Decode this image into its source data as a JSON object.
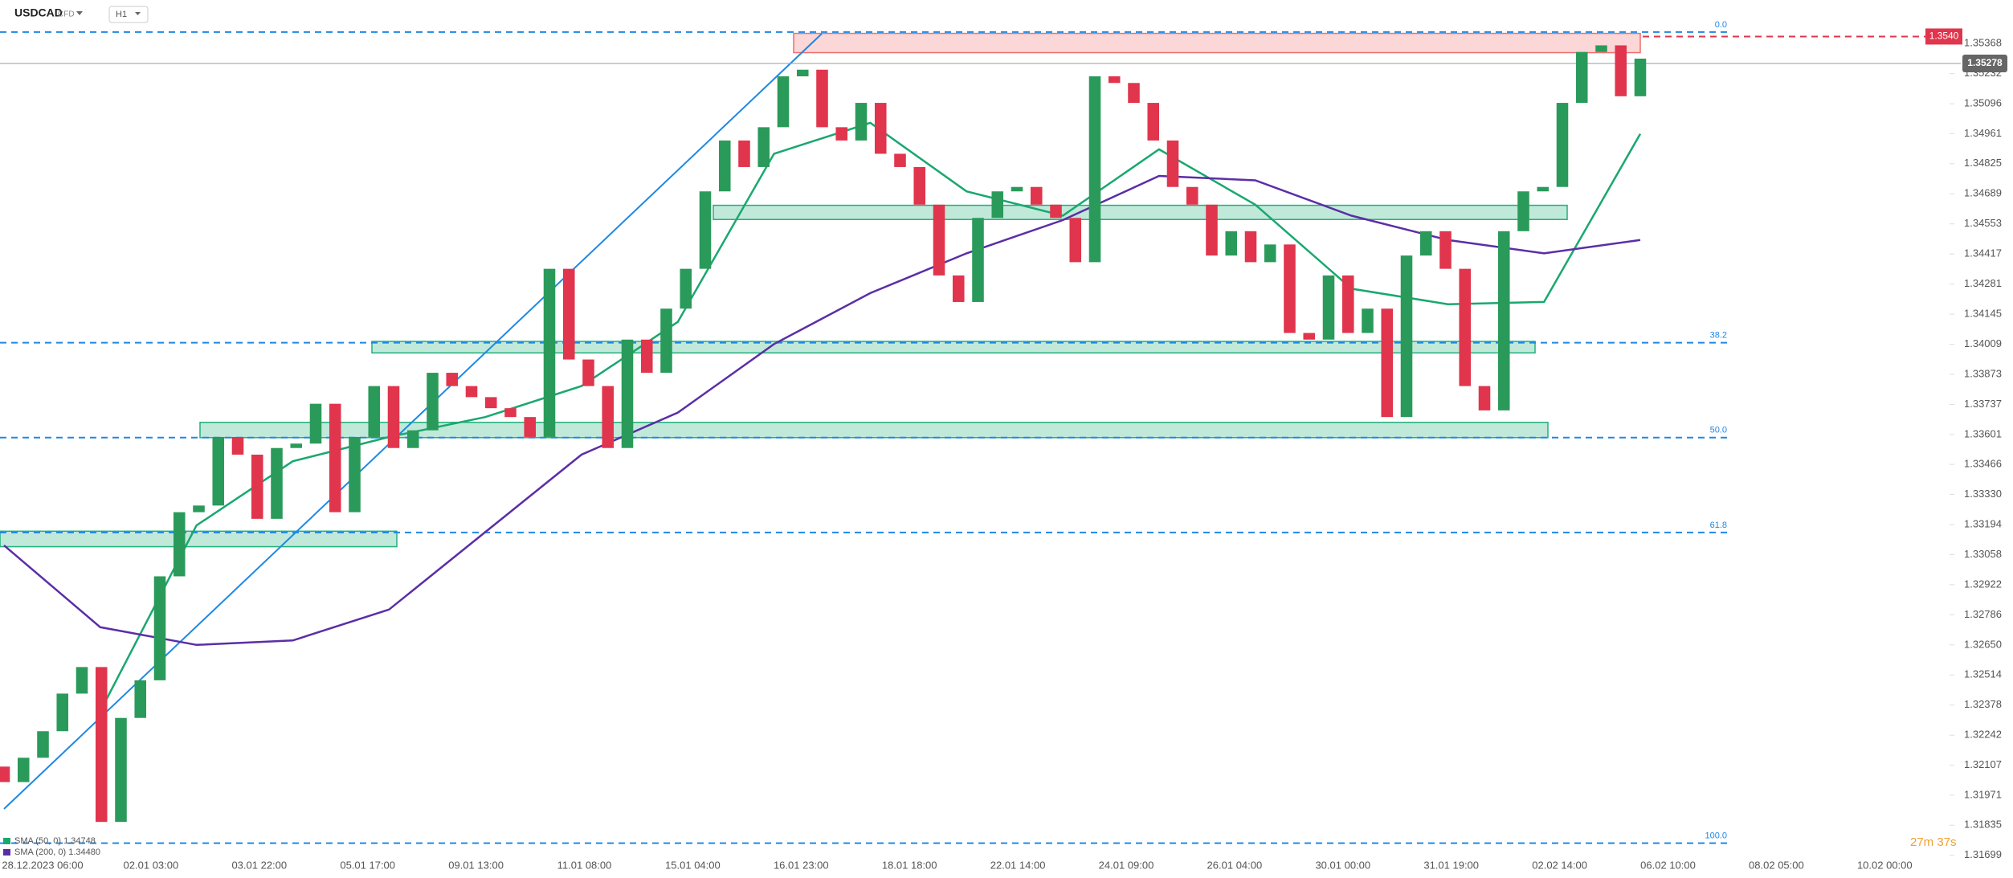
{
  "header": {
    "symbol": "USDCAD",
    "instrument": "CFD",
    "timeframe": "H1"
  },
  "chart_data": {
    "type": "candlestick",
    "categories": [
      "28.12.2023 06:00",
      "02.01 03:00",
      "03.01 22:00",
      "05.01 17:00",
      "09.01 13:00",
      "11.01 08:00",
      "15.01 04:00",
      "16.01 23:00",
      "18.01 18:00",
      "22.01 14:00",
      "24.01 09:00",
      "26.01 04:00",
      "30.01 00:00",
      "31.01 19:00",
      "02.02 14:00",
      "06.02 10:00",
      "08.02 05:00",
      "10.02 00:00"
    ],
    "open": [
      1.321,
      1.3203,
      1.3214,
      1.3226,
      1.3243,
      1.3255,
      1.3185,
      1.3232,
      1.3249,
      1.3296,
      1.3325,
      1.3328,
      1.3359,
      1.3351,
      1.3322,
      1.3354,
      1.3356,
      1.3374,
      1.3325,
      1.3359,
      1.3382,
      1.3354,
      1.3362,
      1.3388,
      1.3382,
      1.3377,
      1.3372,
      1.3368,
      1.3359,
      1.3435,
      1.3394,
      1.3382,
      1.3354,
      1.3403,
      1.3388,
      1.3417,
      1.3435,
      1.347,
      1.3493,
      1.3481,
      1.3499,
      1.3522,
      1.3525,
      1.3499,
      1.3493,
      1.351,
      1.3487,
      1.3481,
      1.3464,
      1.3432,
      1.342,
      1.3458,
      1.347,
      1.3472,
      1.3464,
      1.3458,
      1.3438,
      1.3522,
      1.3519,
      1.351,
      1.3493,
      1.3472,
      1.3464,
      1.3441,
      1.3452,
      1.3438,
      1.3446,
      1.3406,
      1.3403,
      1.3432,
      1.3406,
      1.3417,
      1.3368,
      1.3441,
      1.3452,
      1.3435,
      1.3382,
      1.3371,
      1.3452,
      1.347,
      1.3472,
      1.351,
      1.3533,
      1.3536,
      1.3513
    ],
    "close": [
      1.3203,
      1.3214,
      1.3226,
      1.3243,
      1.3255,
      1.3185,
      1.3232,
      1.3249,
      1.3296,
      1.3325,
      1.3328,
      1.3359,
      1.3351,
      1.3322,
      1.3354,
      1.3356,
      1.3374,
      1.3325,
      1.3359,
      1.3382,
      1.3354,
      1.3362,
      1.3388,
      1.3382,
      1.3377,
      1.3372,
      1.3368,
      1.3359,
      1.3435,
      1.3394,
      1.3382,
      1.3354,
      1.3403,
      1.3388,
      1.3417,
      1.3435,
      1.347,
      1.3493,
      1.3481,
      1.3499,
      1.3522,
      1.3525,
      1.3499,
      1.3493,
      1.351,
      1.3487,
      1.3481,
      1.3464,
      1.3432,
      1.342,
      1.3458,
      1.347,
      1.3472,
      1.3464,
      1.3458,
      1.3438,
      1.3522,
      1.3519,
      1.351,
      1.3493,
      1.3472,
      1.3464,
      1.3441,
      1.3452,
      1.3438,
      1.3446,
      1.3406,
      1.3403,
      1.3432,
      1.3406,
      1.3417,
      1.3368,
      1.3441,
      1.3452,
      1.3435,
      1.3382,
      1.3371,
      1.3452,
      1.347,
      1.3472,
      1.351,
      1.3533,
      1.3536,
      1.3513,
      1.353
    ],
    "up_color": "#2a9a5a",
    "down_color": "#e0354c",
    "ylim": [
      1.3168,
      1.35565
    ],
    "yticks": [
      1.35368,
      1.35232,
      1.35096,
      1.34961,
      1.34825,
      1.34689,
      1.34553,
      1.34417,
      1.34281,
      1.34145,
      1.34009,
      1.33873,
      1.33737,
      1.33601,
      1.33466,
      {
        "value": 1.3333,
        "label": "1.33330"
      },
      1.33194,
      1.33058,
      1.32922,
      1.32786,
      {
        "value": 1.3265,
        "label": "1.32650"
      },
      1.32514,
      1.32378,
      1.32242,
      1.32107,
      1.31971,
      1.31835,
      1.31699
    ],
    "series": [
      {
        "name": "SMA (50, 0) 1.34748",
        "color": "#19a86f",
        "values": [
          null,
          1.3235,
          1.3319,
          1.3348,
          1.3359,
          1.3368,
          1.3382,
          1.3411,
          1.3487,
          1.3501,
          1.347,
          1.3459,
          1.3489,
          1.3464,
          1.3426,
          1.3419,
          1.342,
          1.3496
        ]
      },
      {
        "name": "SMA (200, 0) 1.34480",
        "color": "#5b2ea6",
        "values": [
          1.331,
          1.3273,
          1.3265,
          1.3267,
          1.3281,
          1.3316,
          1.3351,
          1.337,
          1.3401,
          1.3424,
          1.3442,
          1.3457,
          1.3477,
          1.3475,
          1.3459,
          1.3448,
          1.3442,
          1.3448
        ]
      }
    ],
    "fib_levels": [
      {
        "value": 1.3542,
        "label": "0.0"
      },
      {
        "value": 1.34016,
        "label": "38.2"
      },
      {
        "value": 1.33587,
        "label": "50.0"
      },
      {
        "value": 1.33158,
        "label": "61.8"
      },
      {
        "value": 1.31754,
        "label": "100.0"
      }
    ],
    "zones": [
      {
        "top": 1.35414,
        "bottom": 1.35327,
        "color": "#ef6f6f"
      },
      {
        "top": 1.34637,
        "bottom": 1.34573,
        "color": "#22b07a"
      },
      {
        "top": 1.34022,
        "bottom": 1.3397,
        "color": "#22b07a"
      },
      {
        "top": 1.33656,
        "bottom": 1.33587,
        "color": "#22b07a"
      },
      {
        "top": 1.33164,
        "bottom": 1.33094,
        "color": "#22b07a"
      }
    ],
    "price_lines": [
      {
        "value": 1.354,
        "label": "1.3540",
        "color": "#e0354c"
      },
      {
        "value": 1.35278,
        "label": "1.35278",
        "color": "#666666"
      }
    ],
    "timer": "27m 37s"
  }
}
